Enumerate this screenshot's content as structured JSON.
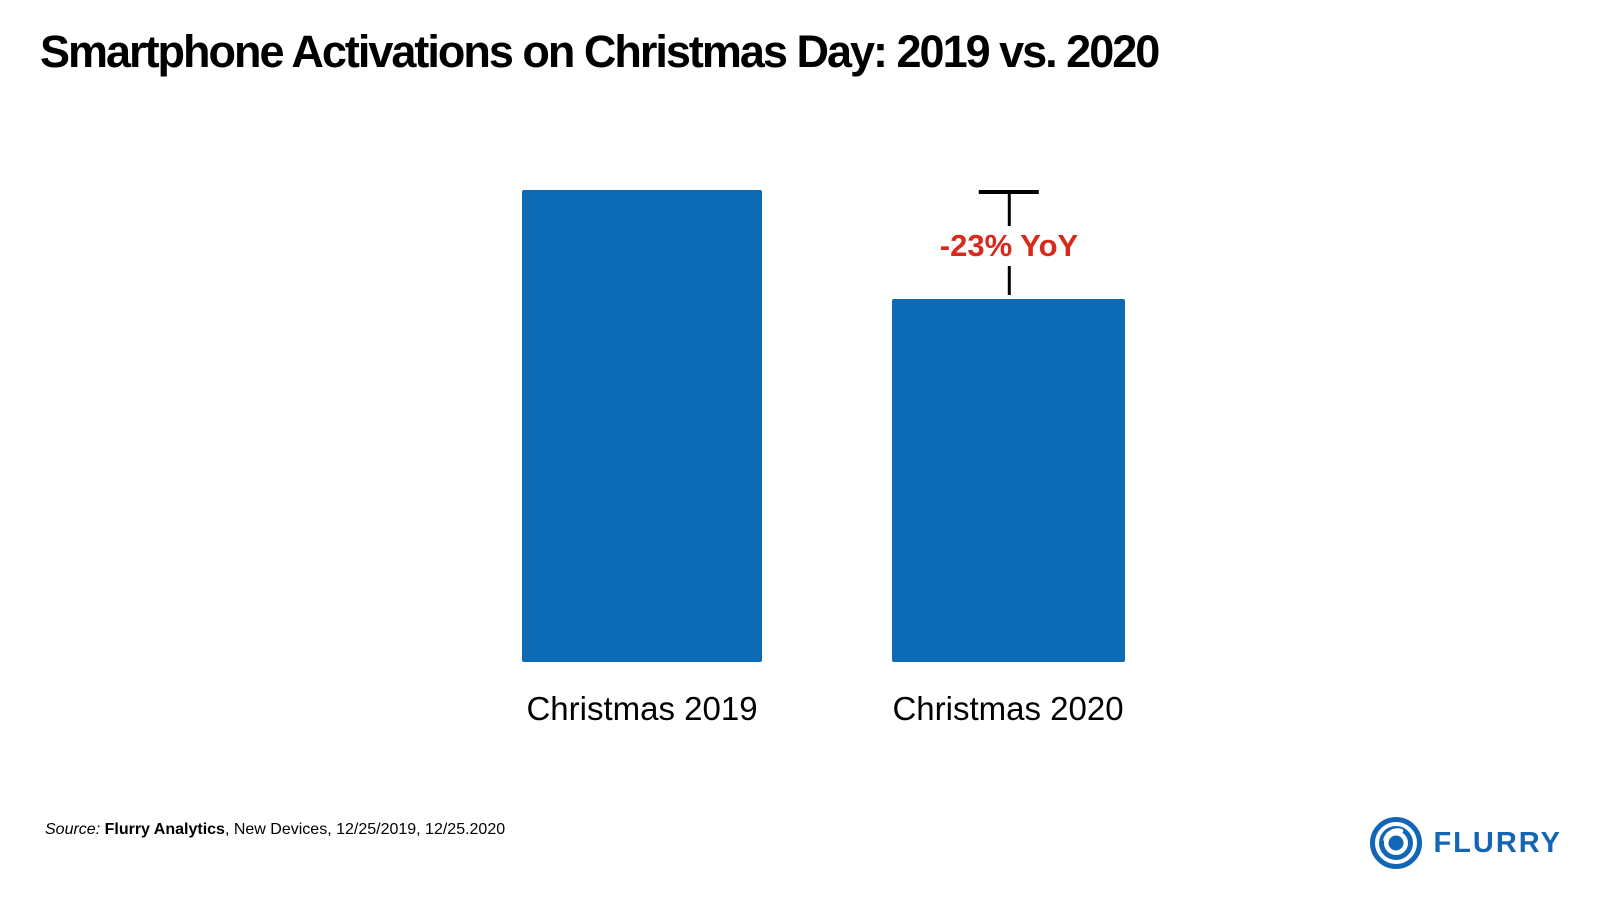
{
  "title": "Smartphone Activations on Christmas Day: 2019 vs. 2020",
  "chart_data": {
    "type": "bar",
    "title": "Smartphone Activations on Christmas Day: 2019 vs. 2020",
    "categories": [
      "Christmas 2019",
      "Christmas 2020"
    ],
    "values": [
      100,
      77
    ],
    "value_note": "relative index: Christmas 2019 = 100, Christmas 2020 is 23% lower",
    "xlabel": "",
    "ylabel": "",
    "ylim": [
      0,
      100
    ],
    "grid": false,
    "axes_hidden": true,
    "annotation": {
      "label": "-23% YoY",
      "target": "Christmas 2020",
      "reference_level": 100
    }
  },
  "source": {
    "prefix": "Source: ",
    "name": "Flurry Analytics",
    "details": ", New Devices, 12/25/2019, 12/25.2020"
  },
  "logo": {
    "brand": "FLURRY",
    "icon": "flurry-spiral-icon"
  },
  "colors": {
    "bar-blue": "#0d6ab5",
    "annotation-red": "#d7291c",
    "logo-blue": "#1266b5",
    "text-black": "#000000",
    "background": "#ffffff"
  }
}
